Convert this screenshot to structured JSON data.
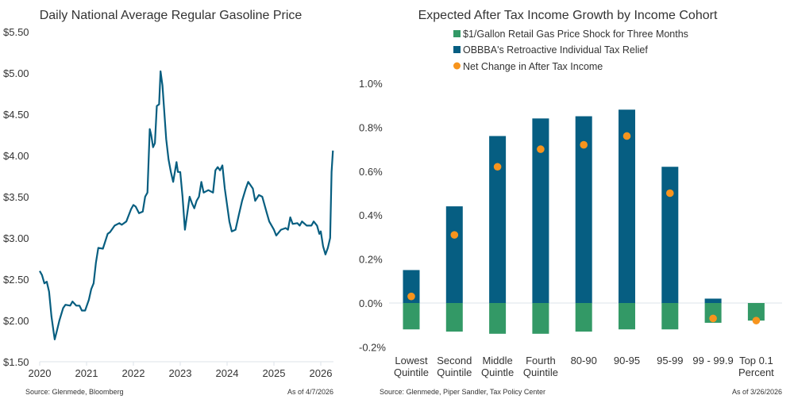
{
  "colors": {
    "line": "#075e80",
    "gas": "#339966",
    "tax": "#065e82",
    "net": "#f7941d",
    "axis": "#dde3ea"
  },
  "chart_data": [
    {
      "type": "line",
      "title": "Daily National Average Regular Gasoline Price",
      "xlabel": "",
      "ylabel": "",
      "xlim": [
        2020,
        2026.27
      ],
      "ylim": [
        1.5,
        5.5
      ],
      "yticks": [
        "$1.50",
        "$2.00",
        "$2.50",
        "$3.00",
        "$3.50",
        "$4.00",
        "$4.50",
        "$5.00",
        "$5.50"
      ],
      "ytick_values": [
        1.5,
        2.0,
        2.5,
        3.0,
        3.5,
        4.0,
        4.5,
        5.0,
        5.5
      ],
      "xticks": [
        "2020",
        "2021",
        "2022",
        "2023",
        "2024",
        "2025",
        "2026"
      ],
      "xtick_values": [
        2020,
        2021,
        2022,
        2023,
        2024,
        2025,
        2026
      ],
      "source": "Source: Glenmede, Bloomberg",
      "asof": "As of 4/7/2026",
      "series": [
        {
          "name": "Regular Gasoline",
          "points": [
            [
              2020.0,
              2.6
            ],
            [
              2020.05,
              2.55
            ],
            [
              2020.1,
              2.45
            ],
            [
              2020.15,
              2.47
            ],
            [
              2020.2,
              2.35
            ],
            [
              2020.25,
              2.05
            ],
            [
              2020.3,
              1.85
            ],
            [
              2020.32,
              1.77
            ],
            [
              2020.37,
              1.88
            ],
            [
              2020.42,
              2.0
            ],
            [
              2020.5,
              2.15
            ],
            [
              2020.55,
              2.19
            ],
            [
              2020.65,
              2.18
            ],
            [
              2020.7,
              2.23
            ],
            [
              2020.78,
              2.18
            ],
            [
              2020.85,
              2.18
            ],
            [
              2020.9,
              2.12
            ],
            [
              2020.97,
              2.12
            ],
            [
              2021.05,
              2.25
            ],
            [
              2021.1,
              2.38
            ],
            [
              2021.15,
              2.45
            ],
            [
              2021.2,
              2.7
            ],
            [
              2021.25,
              2.88
            ],
            [
              2021.35,
              2.87
            ],
            [
              2021.45,
              3.05
            ],
            [
              2021.5,
              3.07
            ],
            [
              2021.6,
              3.15
            ],
            [
              2021.7,
              3.18
            ],
            [
              2021.75,
              3.16
            ],
            [
              2021.85,
              3.2
            ],
            [
              2021.95,
              3.35
            ],
            [
              2022.0,
              3.4
            ],
            [
              2022.05,
              3.38
            ],
            [
              2022.12,
              3.3
            ],
            [
              2022.2,
              3.32
            ],
            [
              2022.25,
              3.5
            ],
            [
              2022.3,
              3.55
            ],
            [
              2022.35,
              4.32
            ],
            [
              2022.38,
              4.25
            ],
            [
              2022.42,
              4.1
            ],
            [
              2022.46,
              4.15
            ],
            [
              2022.5,
              4.6
            ],
            [
              2022.55,
              4.62
            ],
            [
              2022.58,
              5.02
            ],
            [
              2022.62,
              4.85
            ],
            [
              2022.7,
              4.2
            ],
            [
              2022.75,
              3.95
            ],
            [
              2022.8,
              3.8
            ],
            [
              2022.85,
              3.68
            ],
            [
              2022.9,
              3.85
            ],
            [
              2022.92,
              3.92
            ],
            [
              2022.95,
              3.8
            ],
            [
              2023.0,
              3.8
            ],
            [
              2023.05,
              3.5
            ],
            [
              2023.1,
              3.1
            ],
            [
              2023.15,
              3.3
            ],
            [
              2023.2,
              3.5
            ],
            [
              2023.25,
              3.42
            ],
            [
              2023.3,
              3.36
            ],
            [
              2023.35,
              3.45
            ],
            [
              2023.4,
              3.5
            ],
            [
              2023.45,
              3.68
            ],
            [
              2023.5,
              3.55
            ],
            [
              2023.6,
              3.58
            ],
            [
              2023.7,
              3.55
            ],
            [
              2023.75,
              3.82
            ],
            [
              2023.8,
              3.86
            ],
            [
              2023.85,
              3.82
            ],
            [
              2023.9,
              3.88
            ],
            [
              2023.95,
              3.6
            ],
            [
              2024.0,
              3.4
            ],
            [
              2024.05,
              3.2
            ],
            [
              2024.1,
              3.08
            ],
            [
              2024.18,
              3.1
            ],
            [
              2024.25,
              3.28
            ],
            [
              2024.32,
              3.45
            ],
            [
              2024.4,
              3.6
            ],
            [
              2024.45,
              3.68
            ],
            [
              2024.55,
              3.6
            ],
            [
              2024.6,
              3.45
            ],
            [
              2024.68,
              3.52
            ],
            [
              2024.75,
              3.5
            ],
            [
              2024.85,
              3.3
            ],
            [
              2024.9,
              3.2
            ],
            [
              2025.0,
              3.1
            ],
            [
              2025.05,
              3.03
            ],
            [
              2025.15,
              3.1
            ],
            [
              2025.25,
              3.12
            ],
            [
              2025.3,
              3.1
            ],
            [
              2025.35,
              3.25
            ],
            [
              2025.4,
              3.17
            ],
            [
              2025.5,
              3.18
            ],
            [
              2025.55,
              3.15
            ],
            [
              2025.6,
              3.2
            ],
            [
              2025.7,
              3.15
            ],
            [
              2025.8,
              3.15
            ],
            [
              2025.85,
              3.2
            ],
            [
              2025.92,
              3.15
            ],
            [
              2025.97,
              3.05
            ],
            [
              2026.0,
              3.08
            ],
            [
              2026.05,
              2.9
            ],
            [
              2026.1,
              2.8
            ],
            [
              2026.15,
              2.88
            ],
            [
              2026.18,
              2.95
            ],
            [
              2026.2,
              3.0
            ],
            [
              2026.23,
              3.8
            ],
            [
              2026.26,
              4.06
            ]
          ]
        }
      ]
    },
    {
      "type": "bar",
      "title": "Expected After Tax Income Growth by Income Cohort",
      "ylim": [
        -0.2,
        1.0
      ],
      "yticks": [
        "-0.2%",
        "0.0%",
        "0.2%",
        "0.4%",
        "0.6%",
        "0.8%",
        "1.0%"
      ],
      "ytick_values": [
        -0.2,
        0,
        0.2,
        0.4,
        0.6,
        0.8,
        1.0
      ],
      "categories": [
        [
          "Lowest",
          "Quintile"
        ],
        [
          "Second",
          "Quintile"
        ],
        [
          "Middle",
          "Quintle"
        ],
        [
          "Fourth",
          "Quintile"
        ],
        [
          "80-90",
          ""
        ],
        [
          "90-95",
          ""
        ],
        [
          "95-99",
          ""
        ],
        [
          "99 - 99.9",
          ""
        ],
        [
          "Top 0.1",
          "Percent"
        ]
      ],
      "legend_position": "top",
      "series": [
        {
          "name": "$1/Gallon Retail Gas Price Shock for Three Months",
          "kind": "bar",
          "values": [
            -0.12,
            -0.13,
            -0.14,
            -0.14,
            -0.13,
            -0.12,
            -0.12,
            -0.09,
            -0.08
          ]
        },
        {
          "name": "OBBBA's Retroactive Individual Tax Relief",
          "kind": "bar",
          "values": [
            0.15,
            0.44,
            0.76,
            0.84,
            0.85,
            0.88,
            0.62,
            0.02,
            0.0
          ]
        },
        {
          "name": "Net Change in After Tax Income",
          "kind": "dot",
          "values": [
            0.03,
            0.31,
            0.62,
            0.7,
            0.72,
            0.76,
            0.5,
            -0.07,
            -0.08
          ]
        }
      ],
      "source": "Source: Glenmede, Piper Sandler, Tax Policy Center",
      "asof": "As of 3/26/2026"
    }
  ]
}
